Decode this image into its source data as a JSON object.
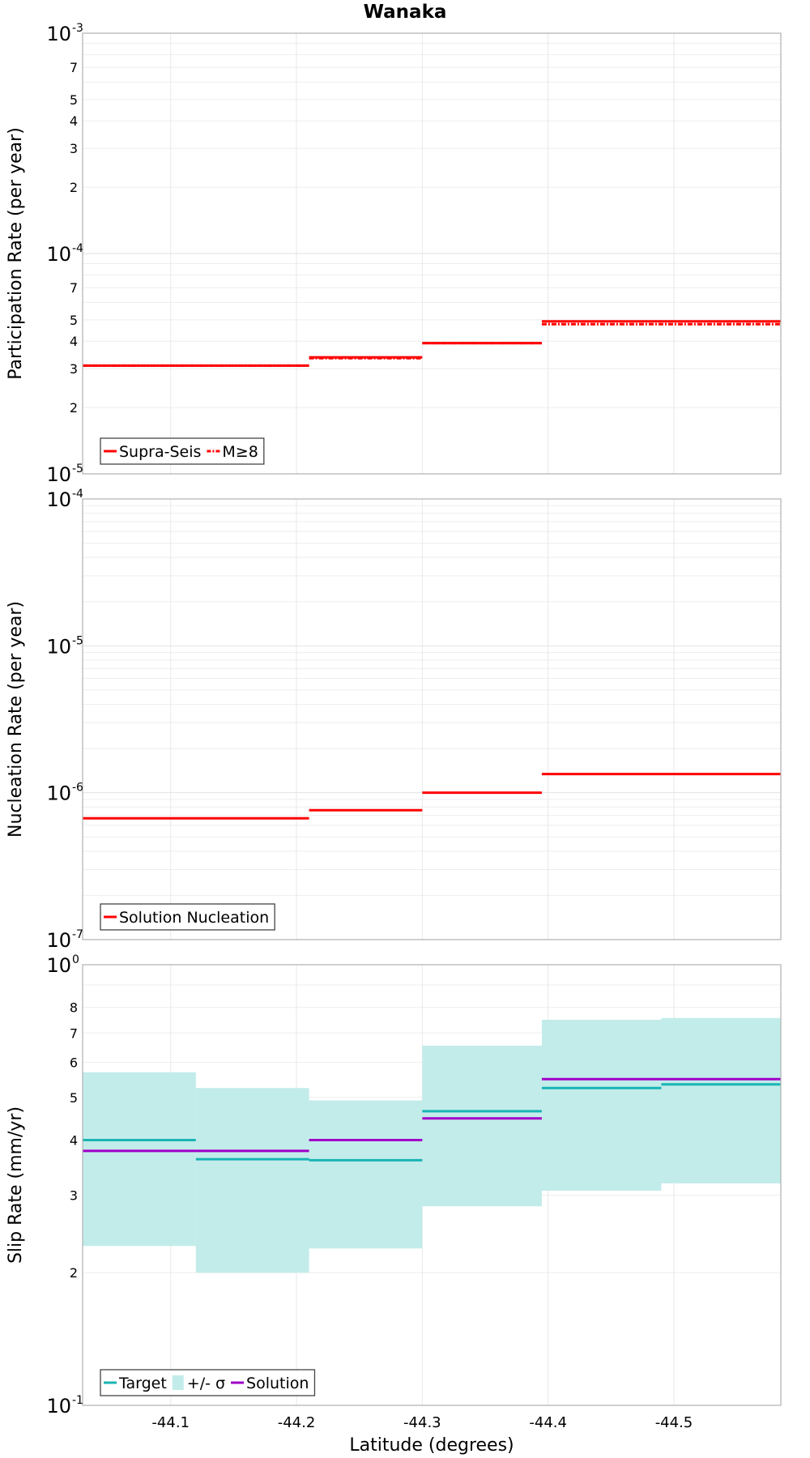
{
  "figure_title": "Wanaka",
  "xlabel": "Latitude (degrees)",
  "x_ticks": [
    {
      "value": -44.1,
      "label": "-44.1"
    },
    {
      "value": -44.2,
      "label": "-44.2"
    },
    {
      "value": -44.3,
      "label": "-44.3"
    },
    {
      "value": -44.4,
      "label": "-44.4"
    },
    {
      "value": -44.5,
      "label": "-44.5"
    }
  ],
  "xlim": [
    -44.03,
    -44.585
  ],
  "chart_data": [
    {
      "type": "line",
      "ylabel": "Participation Rate (per year)",
      "yscale": "log",
      "ylim": [
        1e-05,
        0.001
      ],
      "major_ticks": [
        {
          "value": 0.001,
          "base": "10",
          "exp": "-3"
        },
        {
          "value": 0.0001,
          "base": "10",
          "exp": "-4"
        },
        {
          "value": 1e-05,
          "base": "10",
          "exp": "-5"
        }
      ],
      "minor_ticks": [
        {
          "value": 0.0007,
          "label": "7"
        },
        {
          "value": 0.0005,
          "label": "5"
        },
        {
          "value": 0.0004,
          "label": "4"
        },
        {
          "value": 0.0003,
          "label": "3"
        },
        {
          "value": 0.0002,
          "label": "2"
        },
        {
          "value": 7e-05,
          "label": "7"
        },
        {
          "value": 5e-05,
          "label": "5"
        },
        {
          "value": 4e-05,
          "label": "4"
        },
        {
          "value": 3e-05,
          "label": "3"
        },
        {
          "value": 2e-05,
          "label": "2"
        }
      ],
      "series": [
        {
          "name": "Supra-Seis",
          "color": "#ff0000",
          "style": "solid",
          "steps": [
            {
              "x0": -44.03,
              "x1": -44.21,
              "y": 3.1e-05
            },
            {
              "x0": -44.21,
              "x1": -44.3,
              "y": 3.38e-05
            },
            {
              "x0": -44.3,
              "x1": -44.395,
              "y": 3.92e-05
            },
            {
              "x0": -44.395,
              "x1": -44.585,
              "y": 4.92e-05
            }
          ]
        },
        {
          "name": "M≥8",
          "color": "#ff0000",
          "style": "dashdot",
          "steps": [
            {
              "x0": -44.03,
              "x1": -44.21,
              "y": 3.1e-05
            },
            {
              "x0": -44.21,
              "x1": -44.3,
              "y": 3.35e-05
            },
            {
              "x0": -44.3,
              "x1": -44.395,
              "y": 3.92e-05
            },
            {
              "x0": -44.395,
              "x1": -44.585,
              "y": 4.78e-05
            }
          ]
        }
      ],
      "legend": [
        {
          "label": "Supra-Seis",
          "color": "#ff0000",
          "kind": "line"
        },
        {
          "label": "M≥8",
          "color": "#ff0000",
          "kind": "dashdot"
        }
      ]
    },
    {
      "type": "line",
      "ylabel": "Nucleation Rate (per year)",
      "yscale": "log",
      "ylim": [
        1e-07,
        0.0001
      ],
      "major_ticks": [
        {
          "value": 0.0001,
          "base": "10",
          "exp": "-4"
        },
        {
          "value": 1e-05,
          "base": "10",
          "exp": "-5"
        },
        {
          "value": 1e-06,
          "base": "10",
          "exp": "-6"
        },
        {
          "value": 1e-07,
          "base": "10",
          "exp": "-7"
        }
      ],
      "minor_ticks": [],
      "series": [
        {
          "name": "Solution Nucleation",
          "color": "#ff0000",
          "style": "solid",
          "steps": [
            {
              "x0": -44.03,
              "x1": -44.21,
              "y": 6.7e-07
            },
            {
              "x0": -44.21,
              "x1": -44.3,
              "y": 7.6e-07
            },
            {
              "x0": -44.3,
              "x1": -44.395,
              "y": 1e-06
            },
            {
              "x0": -44.395,
              "x1": -44.585,
              "y": 1.34e-06
            }
          ]
        }
      ],
      "legend": [
        {
          "label": "Solution Nucleation",
          "color": "#ff0000",
          "kind": "line"
        }
      ]
    },
    {
      "type": "area",
      "ylabel": "Slip Rate (mm/yr)",
      "yscale": "log",
      "ylim": [
        0.1,
        1.0
      ],
      "major_ticks": [
        {
          "value": 1.0,
          "base": "10",
          "exp": "0"
        },
        {
          "value": 0.1,
          "base": "10",
          "exp": "-1"
        }
      ],
      "minor_ticks": [
        {
          "value": 0.8,
          "label": "8"
        },
        {
          "value": 0.7,
          "label": "7"
        },
        {
          "value": 0.6,
          "label": "6"
        },
        {
          "value": 0.5,
          "label": "5"
        },
        {
          "value": 0.4,
          "label": "4"
        },
        {
          "value": 0.3,
          "label": "3"
        },
        {
          "value": 0.2,
          "label": "2"
        }
      ],
      "band": {
        "name": "+/- σ",
        "color": "#c2ecea",
        "steps": [
          {
            "x0": -44.03,
            "x1": -44.12,
            "low": 0.23,
            "high": 0.57
          },
          {
            "x0": -44.12,
            "x1": -44.21,
            "low": 0.2,
            "high": 0.525
          },
          {
            "x0": -44.21,
            "x1": -44.3,
            "low": 0.227,
            "high": 0.492
          },
          {
            "x0": -44.3,
            "x1": -44.395,
            "low": 0.283,
            "high": 0.655
          },
          {
            "x0": -44.395,
            "x1": -44.49,
            "low": 0.307,
            "high": 0.75
          },
          {
            "x0": -44.49,
            "x1": -44.585,
            "low": 0.319,
            "high": 0.757
          }
        ]
      },
      "series": [
        {
          "name": "Target",
          "color": "#19b4b4",
          "style": "solid",
          "steps": [
            {
              "x0": -44.03,
              "x1": -44.12,
              "y": 0.4
            },
            {
              "x0": -44.12,
              "x1": -44.21,
              "y": 0.362
            },
            {
              "x0": -44.21,
              "x1": -44.3,
              "y": 0.36
            },
            {
              "x0": -44.3,
              "x1": -44.395,
              "y": 0.465
            },
            {
              "x0": -44.395,
              "x1": -44.49,
              "y": 0.525
            },
            {
              "x0": -44.49,
              "x1": -44.585,
              "y": 0.535
            }
          ]
        },
        {
          "name": "Solution",
          "color": "#a000c8",
          "style": "solid",
          "steps": [
            {
              "x0": -44.03,
              "x1": -44.21,
              "y": 0.378
            },
            {
              "x0": -44.21,
              "x1": -44.3,
              "y": 0.4
            },
            {
              "x0": -44.3,
              "x1": -44.395,
              "y": 0.448
            },
            {
              "x0": -44.395,
              "x1": -44.585,
              "y": 0.55
            }
          ]
        }
      ],
      "legend": [
        {
          "label": "Target",
          "color": "#19b4b4",
          "kind": "line"
        },
        {
          "label": "+/- σ",
          "color": "#c2ecea",
          "kind": "box"
        },
        {
          "label": "Solution",
          "color": "#a000c8",
          "kind": "line"
        }
      ]
    }
  ]
}
